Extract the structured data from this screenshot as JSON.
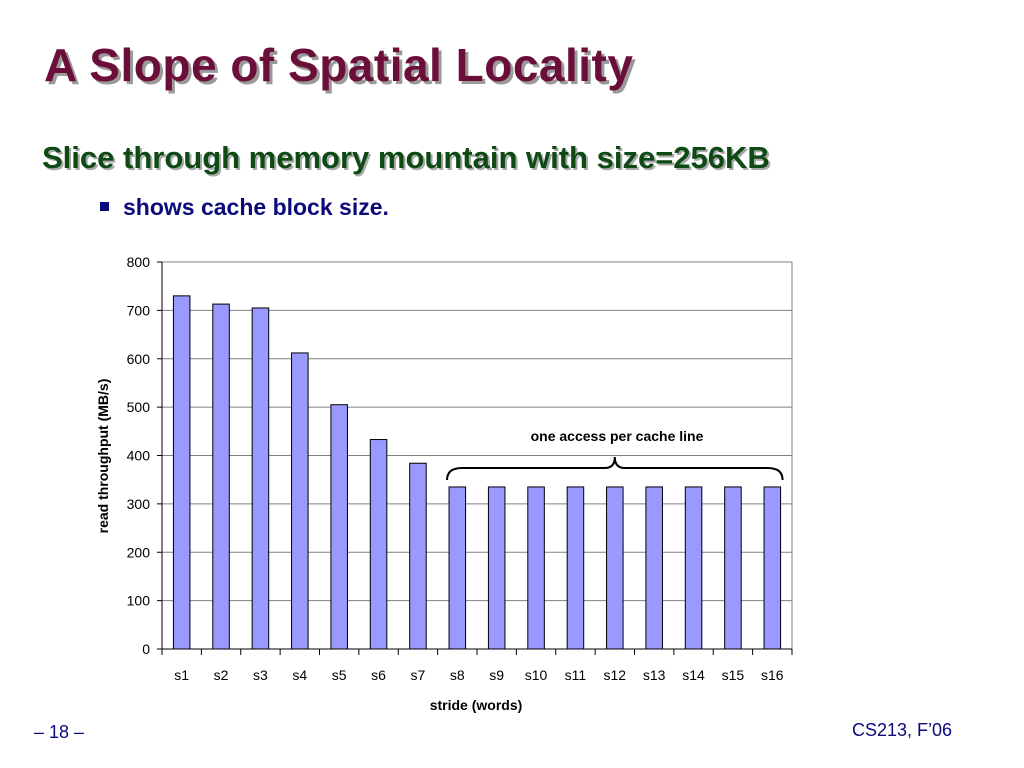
{
  "slide": {
    "title": "A Slope of Spatial Locality",
    "subtitle": "Slice through memory mountain with size=256KB",
    "bullet": "shows cache block size.",
    "page_number": "– 18 –",
    "course": "CS213, F’06"
  },
  "colors": {
    "title": "#6b0f3a",
    "subtitle": "#0d4a14",
    "bullet": "#0a0a7a",
    "bar_fill": "#9999ff",
    "bar_stroke": "#000000"
  },
  "chart_data": {
    "type": "bar",
    "categories": [
      "s1",
      "s2",
      "s3",
      "s4",
      "s5",
      "s6",
      "s7",
      "s8",
      "s9",
      "s10",
      "s11",
      "s12",
      "s13",
      "s14",
      "s15",
      "s16"
    ],
    "values": [
      730,
      713,
      705,
      612,
      505,
      433,
      384,
      335,
      335,
      335,
      335,
      335,
      335,
      335,
      335,
      335
    ],
    "xlabel": "stride (words)",
    "ylabel": "read throughput (MB/s)",
    "ylim": [
      0,
      800
    ],
    "yticks": [
      0,
      100,
      200,
      300,
      400,
      500,
      600,
      700,
      800
    ],
    "grid": true,
    "legend": "none",
    "annotation": {
      "text": "one access per cache line",
      "from_category": "s8",
      "to_category": "s16"
    }
  }
}
